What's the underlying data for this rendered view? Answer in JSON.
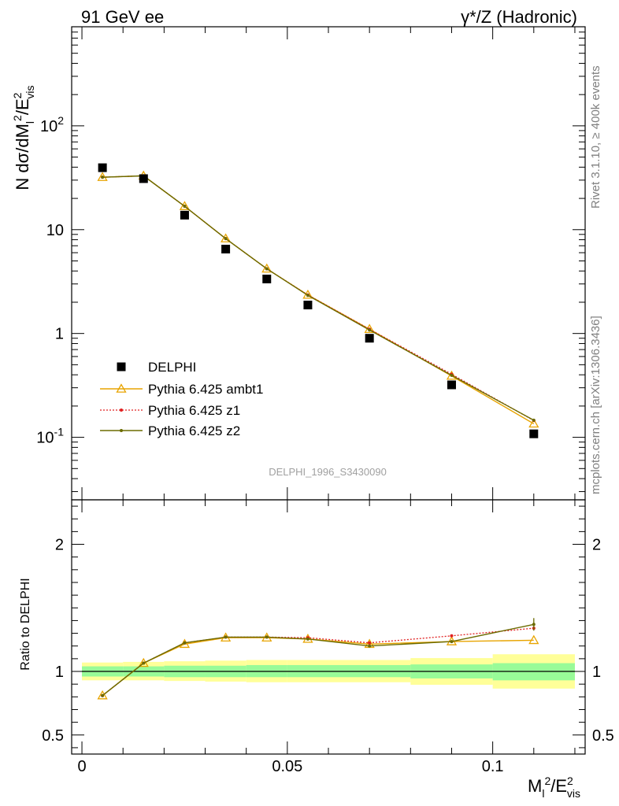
{
  "header": {
    "left_title": "91 GeV ee",
    "right_title": "γ*/Z (Hadronic)"
  },
  "side_labels": {
    "rivet": "Rivet 3.1.10, ≥ 400k events",
    "mcplots": "mcplots.cern.ch [arXiv:1306.3436]"
  },
  "watermark": "DELPHI_1996_S3430090",
  "colors": {
    "data": "#000000",
    "ambt1": "#e8a400",
    "z1": "#e02020",
    "z2": "#6b6b00",
    "band_inner": "#98fb98",
    "band_outer": "#ffff99"
  },
  "chart_data": [
    {
      "type": "scatter",
      "panel": "main",
      "yscale": "log",
      "ylabel": "N dσ/dM_l^2/E_vis^2",
      "ylim": [
        0.025,
        900
      ],
      "xlim": [
        -0.0025,
        0.1225
      ],
      "y_ticklabels": [
        "10^-1",
        "1",
        "10",
        "10^2"
      ],
      "legend_position": "lower-left",
      "x": [
        0.005,
        0.015,
        0.025,
        0.035,
        0.045,
        0.055,
        0.07,
        0.09,
        0.11
      ],
      "series": [
        {
          "name": "DELPHI",
          "style": "data",
          "values": [
            39.5,
            31.0,
            13.8,
            6.5,
            3.35,
            1.88,
            0.9,
            0.32,
            0.108
          ]
        },
        {
          "name": "Pythia 6.425 ambt1",
          "style": "ambt1",
          "values": [
            32.0,
            33.0,
            16.8,
            8.2,
            4.2,
            2.35,
            1.1,
            0.39,
            0.135
          ]
        },
        {
          "name": "Pythia 6.425 z1",
          "style": "z1",
          "values": [
            32.0,
            33.0,
            16.8,
            8.2,
            4.2,
            2.35,
            1.1,
            0.405,
            0.145
          ]
        },
        {
          "name": "Pythia 6.425 z2",
          "style": "z2",
          "values": [
            32.0,
            33.0,
            16.8,
            8.2,
            4.2,
            2.33,
            1.08,
            0.395,
            0.146
          ]
        }
      ]
    },
    {
      "type": "line",
      "panel": "ratio",
      "ylabel": "Ratio to DELPHI",
      "xlabel": "M_l^2/E_vis^2",
      "ylim": [
        0.35,
        2.35
      ],
      "xlim": [
        -0.0025,
        0.1225
      ],
      "y_ticklabels": [
        "0.5",
        "1",
        "2"
      ],
      "x_ticklabels": [
        "0",
        "0.05",
        "0.1"
      ],
      "bins": [
        {
          "lo": 0.0,
          "hi": 0.01,
          "inner": [
            0.96,
            1.04
          ],
          "outer": [
            0.93,
            1.07
          ]
        },
        {
          "lo": 0.01,
          "hi": 0.02,
          "inner": [
            0.96,
            1.04
          ],
          "outer": [
            0.93,
            1.075
          ]
        },
        {
          "lo": 0.02,
          "hi": 0.03,
          "inner": [
            0.955,
            1.045
          ],
          "outer": [
            0.925,
            1.08
          ]
        },
        {
          "lo": 0.03,
          "hi": 0.04,
          "inner": [
            0.955,
            1.045
          ],
          "outer": [
            0.92,
            1.085
          ]
        },
        {
          "lo": 0.04,
          "hi": 0.05,
          "inner": [
            0.955,
            1.05
          ],
          "outer": [
            0.915,
            1.09
          ]
        },
        {
          "lo": 0.05,
          "hi": 0.06,
          "inner": [
            0.955,
            1.05
          ],
          "outer": [
            0.915,
            1.09
          ]
        },
        {
          "lo": 0.06,
          "hi": 0.08,
          "inner": [
            0.955,
            1.05
          ],
          "outer": [
            0.915,
            1.09
          ]
        },
        {
          "lo": 0.08,
          "hi": 0.1,
          "inner": [
            0.945,
            1.055
          ],
          "outer": [
            0.895,
            1.105
          ]
        },
        {
          "lo": 0.1,
          "hi": 0.12,
          "inner": [
            0.93,
            1.065
          ],
          "outer": [
            0.865,
            1.135
          ]
        }
      ],
      "x": [
        0.005,
        0.015,
        0.025,
        0.035,
        0.045,
        0.055,
        0.07,
        0.09,
        0.11
      ],
      "series": [
        {
          "name": "Pythia 6.425 ambt1",
          "style": "ambt1",
          "values": [
            0.81,
            1.065,
            1.215,
            1.265,
            1.265,
            1.255,
            1.215,
            1.235,
            1.245
          ]
        },
        {
          "name": "Pythia 6.425 z1",
          "style": "z1",
          "values": [
            0.81,
            1.065,
            1.225,
            1.27,
            1.27,
            1.265,
            1.225,
            1.28,
            1.34
          ]
        },
        {
          "name": "Pythia 6.425 z2",
          "style": "z2",
          "values": [
            0.81,
            1.065,
            1.225,
            1.27,
            1.27,
            1.255,
            1.2,
            1.235,
            1.37
          ]
        }
      ],
      "reference_line": 1
    }
  ]
}
